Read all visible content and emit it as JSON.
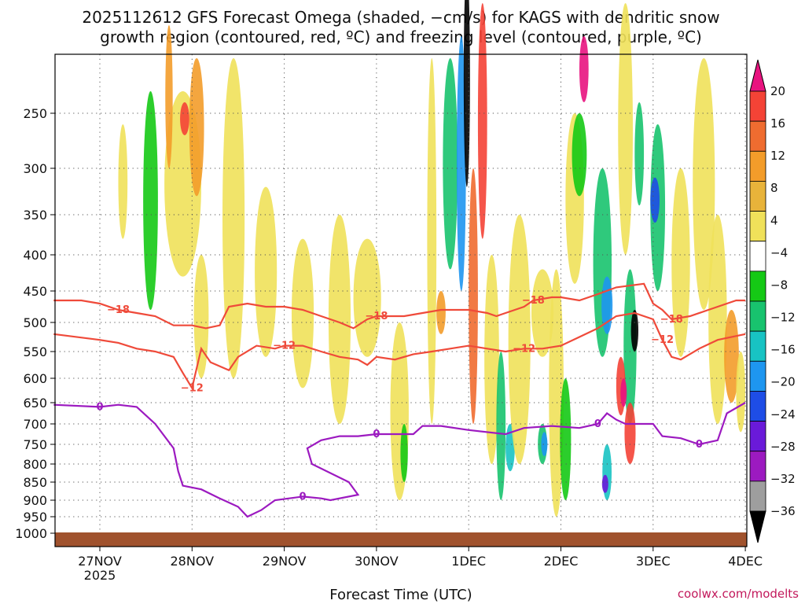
{
  "chart_data": {
    "type": "heatmap",
    "title_line1": "2025112612 GFS Forecast Omega (shaded, −cm/s) for KAGS with dendritic snow",
    "title_line2": "growth region (contoured, red, ºC) and freezing level (contoured, purple, ºC)",
    "xlabel": "Forecast Time (UTC)",
    "credit": "coolwx.com/modelts",
    "y_scale": "pressure (inverted)",
    "y_tick_labels": [
      "250",
      "300",
      "350",
      "400",
      "450",
      "500",
      "550",
      "600",
      "650",
      "700",
      "750",
      "800",
      "850",
      "900",
      "950",
      "1000"
    ],
    "x_range": [
      -0.5,
      7.0
    ],
    "x_ticks": [
      {
        "day": 0,
        "label": "27NOV",
        "sublabel": "2025"
      },
      {
        "day": 1,
        "label": "28NOV",
        "sublabel": ""
      },
      {
        "day": 2,
        "label": "29NOV",
        "sublabel": ""
      },
      {
        "day": 3,
        "label": "30NOV",
        "sublabel": ""
      },
      {
        "day": 4,
        "label": "1DEC",
        "sublabel": ""
      },
      {
        "day": 5,
        "label": "2DEC",
        "sublabel": ""
      },
      {
        "day": 6,
        "label": "3DEC",
        "sublabel": ""
      },
      {
        "day": 7,
        "label": "4DEC",
        "sublabel": ""
      }
    ],
    "grid": true,
    "colorbar": {
      "labels": [
        "20",
        "16",
        "12",
        "8",
        "4",
        "−4",
        "−8",
        "−12",
        "−16",
        "−20",
        "−24",
        "−28",
        "−32",
        "−36"
      ],
      "colors": [
        "#e8137f",
        "#f44336",
        "#ef6c30",
        "#f39c2a",
        "#e8b33a",
        "#f0e15a",
        "#ffffff",
        "#15c915",
        "#18c36e",
        "#18c3c3",
        "#1e96f0",
        "#1e4de6",
        "#6a1ad9",
        "#9c1ac0",
        "#9e9e9e",
        "#000000"
      ]
    },
    "freezing_level": {
      "label": "0",
      "color": "#9c1ac0",
      "points": [
        [
          -0.5,
          655
        ],
        [
          0,
          660
        ],
        [
          0.2,
          655
        ],
        [
          0.4,
          660
        ],
        [
          0.6,
          700
        ],
        [
          0.8,
          760
        ],
        [
          0.85,
          820
        ],
        [
          0.9,
          860
        ],
        [
          1.1,
          870
        ],
        [
          1.3,
          895
        ],
        [
          1.5,
          920
        ],
        [
          1.6,
          950
        ],
        [
          1.75,
          930
        ],
        [
          1.9,
          900
        ],
        [
          2.2,
          890
        ],
        [
          2.4,
          895
        ],
        [
          2.5,
          900
        ],
        [
          2.8,
          885
        ],
        [
          2.7,
          850
        ],
        [
          2.3,
          800
        ],
        [
          2.25,
          760
        ],
        [
          2.4,
          740
        ],
        [
          2.6,
          730
        ],
        [
          2.8,
          730
        ],
        [
          3.0,
          725
        ],
        [
          3.4,
          725
        ],
        [
          3.5,
          705
        ],
        [
          3.7,
          705
        ],
        [
          4.0,
          715
        ],
        [
          4.4,
          725
        ],
        [
          4.6,
          710
        ],
        [
          4.9,
          705
        ],
        [
          5.2,
          710
        ],
        [
          5.4,
          700
        ],
        [
          5.5,
          675
        ],
        [
          5.6,
          690
        ],
        [
          5.7,
          700
        ],
        [
          6.0,
          700
        ],
        [
          6.1,
          730
        ],
        [
          6.3,
          735
        ],
        [
          6.5,
          750
        ],
        [
          6.7,
          740
        ],
        [
          6.8,
          675
        ],
        [
          7.0,
          650
        ]
      ]
    },
    "dgz_minus18": {
      "label": "−18",
      "color": "#ef4a3a",
      "points": [
        [
          -0.5,
          465
        ],
        [
          -0.2,
          465
        ],
        [
          0,
          470
        ],
        [
          0.2,
          480
        ],
        [
          0.4,
          485
        ],
        [
          0.6,
          490
        ],
        [
          0.8,
          505
        ],
        [
          1.0,
          505
        ],
        [
          1.15,
          510
        ],
        [
          1.3,
          505
        ],
        [
          1.4,
          475
        ],
        [
          1.6,
          470
        ],
        [
          1.8,
          475
        ],
        [
          2.0,
          475
        ],
        [
          2.2,
          480
        ],
        [
          2.4,
          490
        ],
        [
          2.6,
          500
        ],
        [
          2.75,
          510
        ],
        [
          2.9,
          495
        ],
        [
          3.0,
          490
        ],
        [
          3.3,
          490
        ],
        [
          3.5,
          485
        ],
        [
          3.7,
          480
        ],
        [
          4.0,
          480
        ],
        [
          4.2,
          485
        ],
        [
          4.3,
          490
        ],
        [
          4.5,
          480
        ],
        [
          4.6,
          475
        ],
        [
          4.7,
          465
        ],
        [
          4.9,
          460
        ],
        [
          5.0,
          460
        ],
        [
          5.2,
          465
        ],
        [
          5.4,
          455
        ],
        [
          5.6,
          445
        ],
        [
          5.9,
          440
        ],
        [
          6.0,
          470
        ],
        [
          6.1,
          480
        ],
        [
          6.2,
          495
        ],
        [
          6.4,
          490
        ],
        [
          6.6,
          480
        ],
        [
          6.9,
          465
        ],
        [
          7.0,
          465
        ]
      ]
    },
    "dgz_minus12": {
      "label": "−12",
      "color": "#ef4a3a",
      "points": [
        [
          -0.5,
          520
        ],
        [
          0,
          530
        ],
        [
          0.2,
          535
        ],
        [
          0.4,
          545
        ],
        [
          0.6,
          550
        ],
        [
          0.8,
          560
        ],
        [
          0.9,
          590
        ],
        [
          1.0,
          620
        ],
        [
          1.1,
          545
        ],
        [
          1.2,
          570
        ],
        [
          1.4,
          585
        ],
        [
          1.5,
          560
        ],
        [
          1.7,
          540
        ],
        [
          1.9,
          545
        ],
        [
          2.0,
          540
        ],
        [
          2.2,
          540
        ],
        [
          2.4,
          550
        ],
        [
          2.6,
          560
        ],
        [
          2.8,
          565
        ],
        [
          2.9,
          575
        ],
        [
          3.0,
          560
        ],
        [
          3.2,
          565
        ],
        [
          3.4,
          555
        ],
        [
          3.6,
          550
        ],
        [
          3.8,
          545
        ],
        [
          4.0,
          540
        ],
        [
          4.2,
          545
        ],
        [
          4.4,
          550
        ],
        [
          4.6,
          545
        ],
        [
          4.8,
          545
        ],
        [
          5.0,
          540
        ],
        [
          5.2,
          525
        ],
        [
          5.4,
          510
        ],
        [
          5.6,
          490
        ],
        [
          5.8,
          485
        ],
        [
          6.0,
          495
        ],
        [
          6.1,
          530
        ],
        [
          6.2,
          560
        ],
        [
          6.3,
          565
        ],
        [
          6.5,
          545
        ],
        [
          6.7,
          530
        ],
        [
          7.0,
          520
        ]
      ]
    }
  }
}
